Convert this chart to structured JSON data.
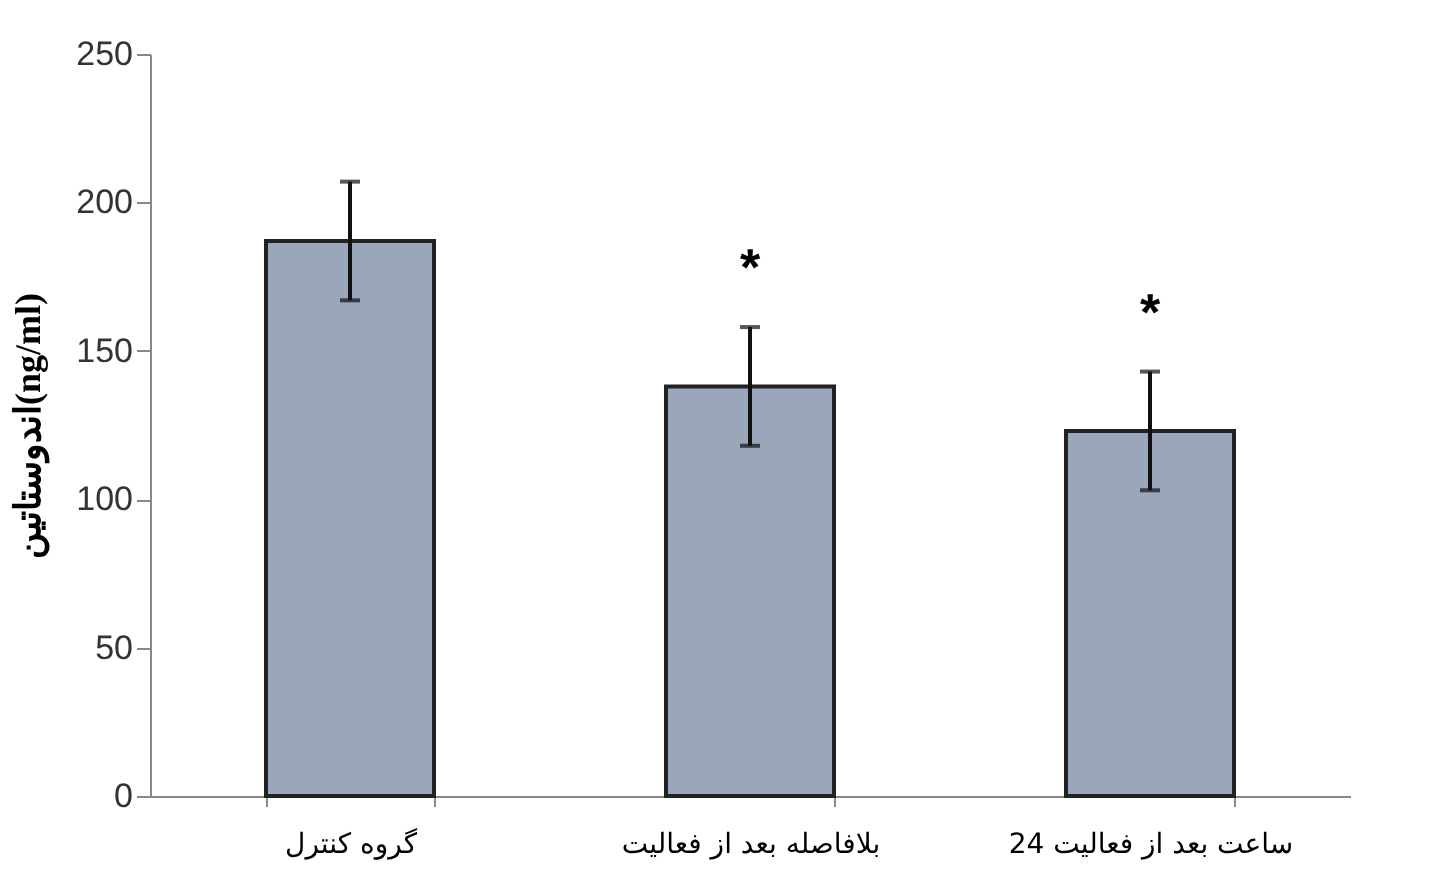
{
  "chart_data": {
    "type": "bar",
    "ylabel": "اندوستاتین(ng/ml)",
    "categories": [
      "گروه کنترل",
      "بلافاصله بعد از فعالیت",
      "24 ساعت بعد از فعالیت"
    ],
    "values": [
      187,
      138,
      123
    ],
    "errors": [
      20,
      20,
      20
    ],
    "color": "#9aa6ba",
    "ylim": [
      0,
      250
    ],
    "yticks": [
      0,
      50,
      100,
      150,
      200,
      250
    ],
    "grid": false,
    "annotations": [
      "*",
      "*"
    ]
  }
}
